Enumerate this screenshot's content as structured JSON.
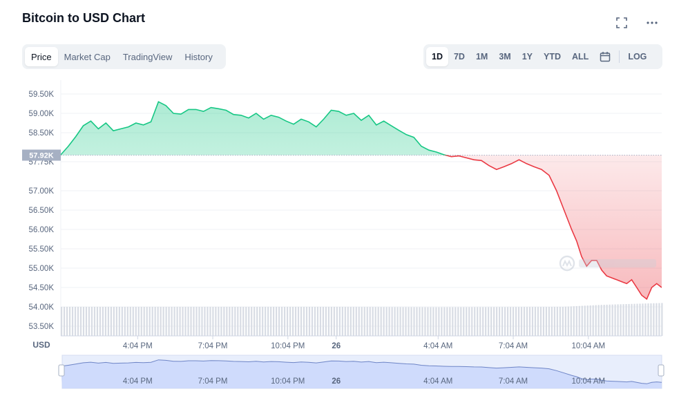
{
  "header": {
    "title": "Bitcoin to USD Chart"
  },
  "icons": {
    "fullscreen": "fullscreen-icon",
    "more": "more-icon",
    "calendar": "calendar-icon",
    "watermark": "coinmarketcap-logo"
  },
  "tabs_left": [
    {
      "label": "Price",
      "active": true
    },
    {
      "label": "Market Cap",
      "active": false
    },
    {
      "label": "TradingView",
      "active": false
    },
    {
      "label": "History",
      "active": false
    }
  ],
  "tabs_right": [
    {
      "label": "1D",
      "active": true
    },
    {
      "label": "7D",
      "active": false
    },
    {
      "label": "1M",
      "active": false
    },
    {
      "label": "3M",
      "active": false
    },
    {
      "label": "1Y",
      "active": false
    },
    {
      "label": "YTD",
      "active": false
    },
    {
      "label": "ALL",
      "active": false
    }
  ],
  "log_label": "LOG",
  "colors": {
    "up": "#16c784",
    "down": "#ea3943",
    "baseline_label_bg": "#a6b0c3",
    "volume": "#d8dce4",
    "nav": "#c8d6fb"
  },
  "chart_data": {
    "type": "line",
    "ylabel": "USD",
    "ylim": [
      53250,
      59750
    ],
    "yticks": [
      {
        "value": 59500,
        "label": "59.50K"
      },
      {
        "value": 59000,
        "label": "59.00K"
      },
      {
        "value": 58500,
        "label": "58.50K"
      },
      {
        "value": 57750,
        "label": "57.75K"
      },
      {
        "value": 57000,
        "label": "57.00K"
      },
      {
        "value": 56500,
        "label": "56.50K"
      },
      {
        "value": 56000,
        "label": "56.00K"
      },
      {
        "value": 55500,
        "label": "55.50K"
      },
      {
        "value": 55000,
        "label": "55.00K"
      },
      {
        "value": 54500,
        "label": "54.50K"
      },
      {
        "value": 54000,
        "label": "54.00K"
      },
      {
        "value": 53500,
        "label": "53.50K"
      }
    ],
    "baseline": {
      "value": 57920,
      "label": "57.92K"
    },
    "xlim": [
      13.0,
      37.0
    ],
    "xticks": [
      {
        "value": 16.07,
        "label": "4:04 PM"
      },
      {
        "value": 19.07,
        "label": "7:04 PM"
      },
      {
        "value": 22.07,
        "label": "10:04 PM"
      },
      {
        "value": 24.0,
        "label": "26"
      },
      {
        "value": 28.07,
        "label": "4:04 AM"
      },
      {
        "value": 31.07,
        "label": "7:04 AM"
      },
      {
        "value": 34.07,
        "label": "10:04 AM"
      }
    ],
    "price": {
      "x": [
        13.0,
        13.3,
        13.6,
        13.9,
        14.2,
        14.5,
        14.8,
        15.1,
        15.4,
        15.7,
        16.0,
        16.3,
        16.6,
        16.9,
        17.2,
        17.5,
        17.8,
        18.1,
        18.4,
        18.7,
        19.0,
        19.3,
        19.6,
        19.9,
        20.2,
        20.5,
        20.8,
        21.1,
        21.4,
        21.7,
        22.0,
        22.3,
        22.6,
        22.9,
        23.2,
        23.5,
        23.8,
        24.1,
        24.4,
        24.7,
        25.0,
        25.3,
        25.6,
        25.9,
        26.2,
        26.5,
        26.8,
        27.1,
        27.4,
        27.7,
        28.0,
        28.3,
        28.6,
        28.9,
        29.2,
        29.5,
        29.8,
        30.1,
        30.4,
        30.7,
        31.0,
        31.3,
        31.6,
        31.9,
        32.2,
        32.5,
        32.8,
        33.1,
        33.4,
        33.6,
        33.8,
        34.0,
        34.2,
        34.4,
        34.6,
        34.8,
        35.0,
        35.2,
        35.4,
        35.6,
        35.8,
        36.0,
        36.2,
        36.4,
        36.6,
        36.8,
        37.0
      ],
      "y": [
        57930,
        58150,
        58400,
        58680,
        58800,
        58600,
        58750,
        58550,
        58600,
        58650,
        58750,
        58700,
        58780,
        59300,
        59200,
        59000,
        58980,
        59100,
        59100,
        59050,
        59150,
        59120,
        59080,
        58970,
        58950,
        58880,
        59000,
        58850,
        58950,
        58900,
        58800,
        58720,
        58850,
        58780,
        58650,
        58850,
        59080,
        59050,
        58950,
        59000,
        58820,
        58950,
        58700,
        58800,
        58680,
        58560,
        58450,
        58380,
        58150,
        58050,
        58000,
        57930,
        57880,
        57900,
        57850,
        57800,
        57780,
        57650,
        57550,
        57620,
        57700,
        57800,
        57700,
        57620,
        57550,
        57400,
        57000,
        56500,
        56000,
        55700,
        55300,
        55050,
        55200,
        55200,
        54950,
        54800,
        54750,
        54700,
        54650,
        54600,
        54700,
        54500,
        54300,
        54200,
        54500,
        54600,
        54500
      ],
      "xref_mark": 36.95
    },
    "volume": {
      "x": [
        13.0,
        20.0,
        24.0,
        28.0,
        33.0,
        34.5,
        36.0,
        37.0
      ],
      "y": [
        54000,
        54000,
        54000,
        53990,
        54000,
        54050,
        54080,
        54100
      ]
    },
    "navigator": {
      "xticks": [
        {
          "value": 16.07,
          "label": "4:04 PM"
        },
        {
          "value": 19.07,
          "label": "7:04 PM"
        },
        {
          "value": 22.07,
          "label": "10:04 PM"
        },
        {
          "value": 24.0,
          "label": "26"
        },
        {
          "value": 28.07,
          "label": "4:04 AM"
        },
        {
          "value": 31.07,
          "label": "7:04 AM"
        },
        {
          "value": 34.07,
          "label": "10:04 AM"
        }
      ]
    },
    "grid": true
  }
}
